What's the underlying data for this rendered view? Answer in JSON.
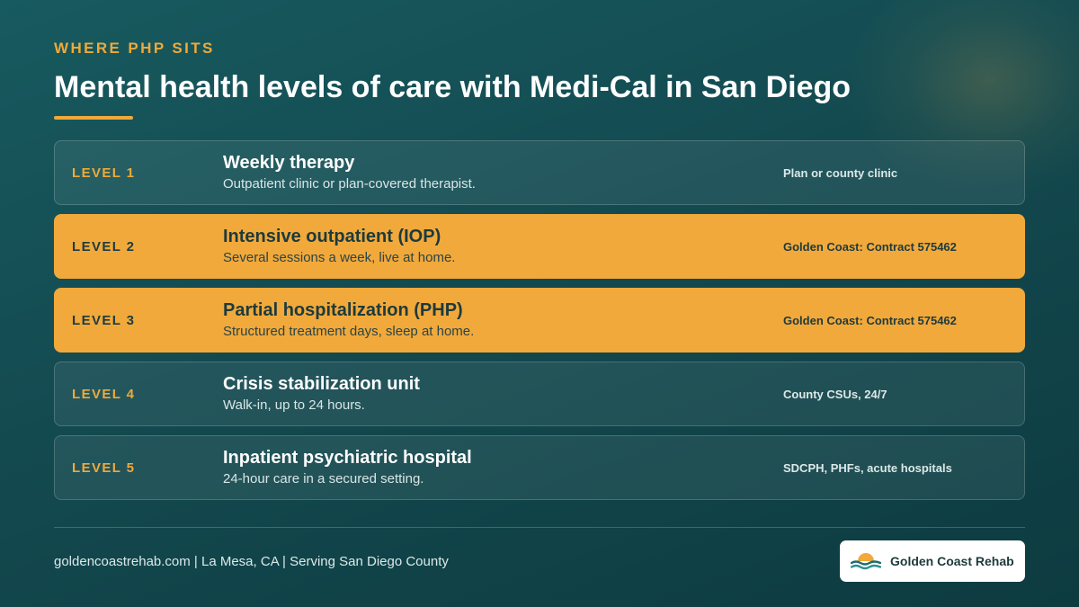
{
  "eyebrow": "WHERE PHP SITS",
  "title": "Mental health levels of care with Medi-Cal in San Diego",
  "levels": [
    {
      "level": "LEVEL 1",
      "name": "Weekly therapy",
      "desc": "Outpatient clinic or plan-covered therapist.",
      "where": "Plan or county clinic",
      "highlight": false
    },
    {
      "level": "LEVEL 2",
      "name": "Intensive outpatient (IOP)",
      "desc": "Several sessions a week, live at home.",
      "where": "Golden Coast: Contract 575462",
      "highlight": true
    },
    {
      "level": "LEVEL 3",
      "name": "Partial hospitalization (PHP)",
      "desc": "Structured treatment days, sleep at home.",
      "where": "Golden Coast: Contract 575462",
      "highlight": true
    },
    {
      "level": "LEVEL 4",
      "name": "Crisis stabilization unit",
      "desc": "Walk-in, up to 24 hours.",
      "where": "County CSUs, 24/7",
      "highlight": false
    },
    {
      "level": "LEVEL 5",
      "name": "Inpatient psychiatric hospital",
      "desc": "24-hour care in a secured setting.",
      "where": "SDCPH, PHFs, acute hospitals",
      "highlight": false
    }
  ],
  "footer": {
    "text": "goldencoastrehab.com | La Mesa, CA | Serving San Diego County",
    "brand_name": "Golden Coast Rehab",
    "logo_icon": "sunset-waves-logo-icon"
  },
  "colors": {
    "accent": "#f0a93a",
    "background": "#134a50",
    "highlight_row": "#f1a93b"
  }
}
